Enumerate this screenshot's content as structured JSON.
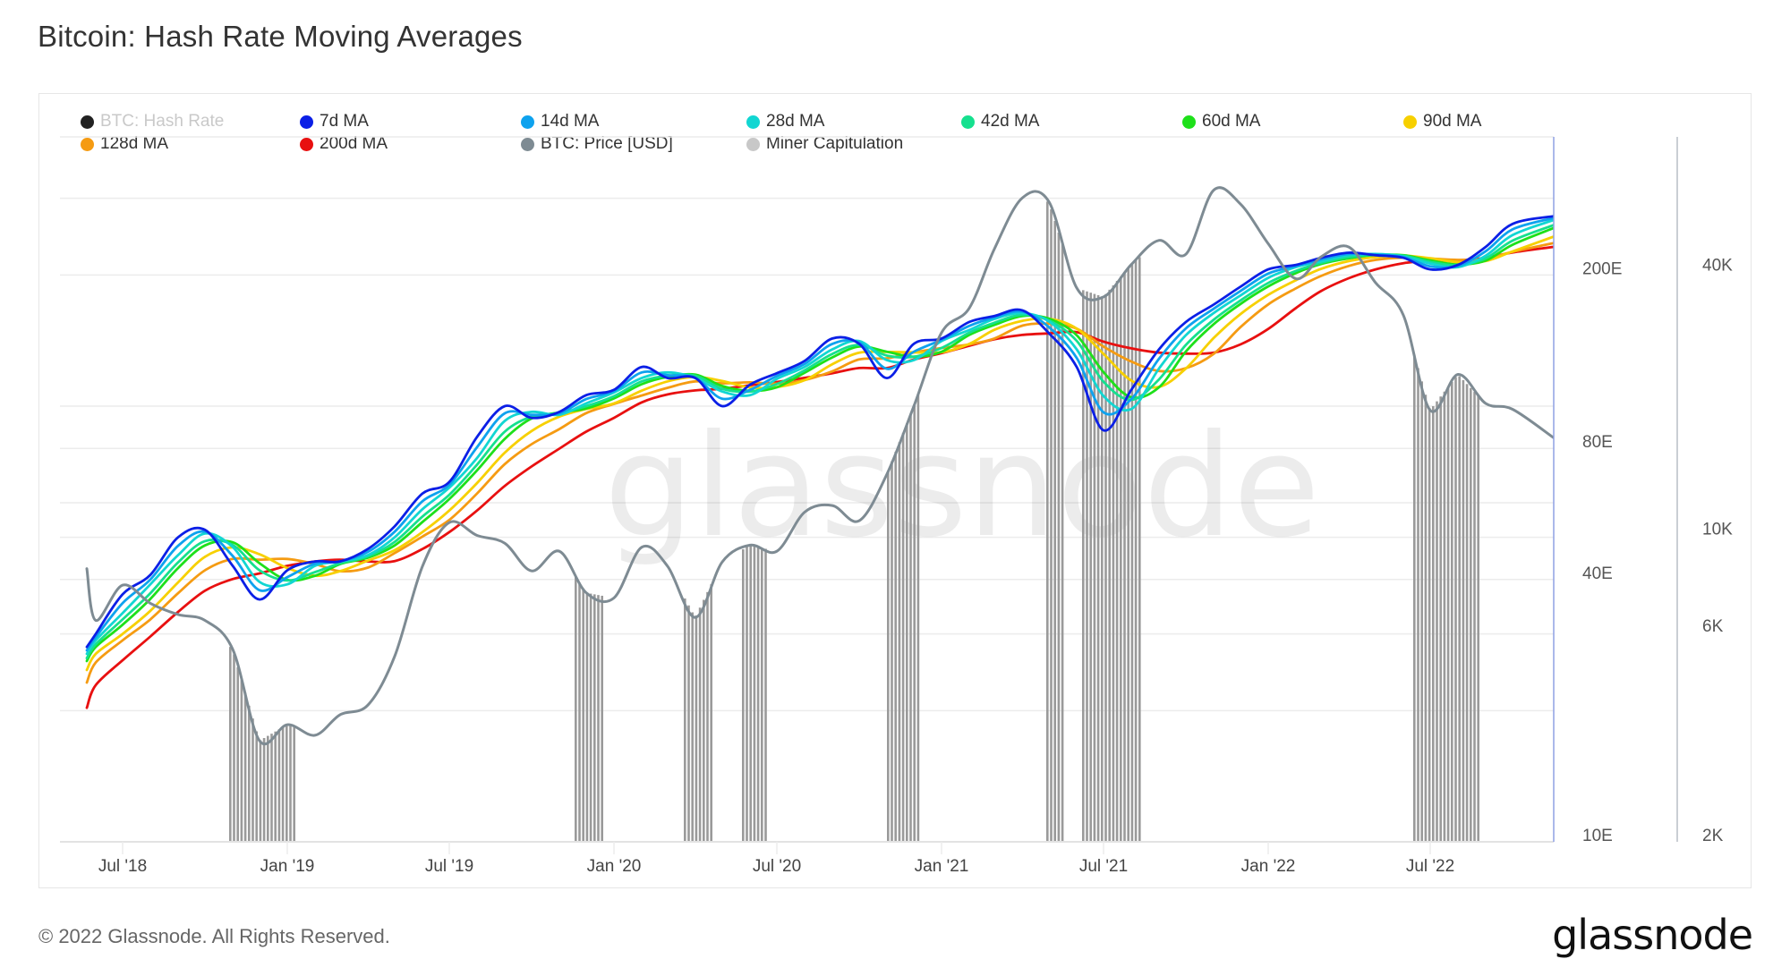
{
  "title": "Bitcoin: Hash Rate Moving Averages",
  "footer": "© 2022 Glassnode. All Rights Reserved.",
  "logo": "glassnode",
  "watermark": "glassnode",
  "legend": [
    {
      "key": "hash",
      "label": "BTC: Hash Rate",
      "color": "#222222",
      "muted": true
    },
    {
      "key": "ma7",
      "label": "7d MA",
      "color": "#0b1fe6"
    },
    {
      "key": "ma14",
      "label": "14d MA",
      "color": "#0ea2ee"
    },
    {
      "key": "ma28",
      "label": "28d MA",
      "color": "#12d6d2"
    },
    {
      "key": "ma42",
      "label": "42d MA",
      "color": "#15e08e"
    },
    {
      "key": "ma60",
      "label": "60d MA",
      "color": "#1ee01a"
    },
    {
      "key": "ma90",
      "label": "90d MA",
      "color": "#f7d000"
    },
    {
      "key": "ma128",
      "label": "128d MA",
      "color": "#f59b12"
    },
    {
      "key": "ma200",
      "label": "200d MA",
      "color": "#e81010"
    },
    {
      "key": "price",
      "label": "BTC: Price [USD]",
      "color": "#7e8b93"
    },
    {
      "key": "capitulation",
      "label": "Miner Capitulation",
      "color": "#c8c8c8"
    }
  ],
  "chart_data": {
    "type": "line",
    "title": "Bitcoin: Hash Rate Moving Averages",
    "xlabel": "",
    "x_tick_labels": [
      {
        "date": "2018-07-01",
        "label": "Jul '18"
      },
      {
        "date": "2019-01-01",
        "label": "Jan '19"
      },
      {
        "date": "2019-07-01",
        "label": "Jul '19"
      },
      {
        "date": "2020-01-01",
        "label": "Jan '20"
      },
      {
        "date": "2020-07-01",
        "label": "Jul '20"
      },
      {
        "date": "2021-01-01",
        "label": "Jan '21"
      },
      {
        "date": "2021-07-01",
        "label": "Jul '21"
      },
      {
        "date": "2022-01-01",
        "label": "Jan '22"
      },
      {
        "date": "2022-07-01",
        "label": "Jul '22"
      }
    ],
    "x_range": [
      "2018-05-22",
      "2022-11-16"
    ],
    "y_axes": [
      {
        "id": "hash",
        "unit": "EH/s",
        "scale": "log",
        "range": [
          10,
          420
        ],
        "tick_labels": [
          {
            "value": 200,
            "label": "200E"
          },
          {
            "value": 80,
            "label": "80E"
          },
          {
            "value": 40,
            "label": "40E"
          },
          {
            "value": 10,
            "label": "10E"
          }
        ],
        "gridlines": [
          300,
          200,
          100,
          80,
          60,
          50,
          40,
          30,
          20
        ]
      },
      {
        "id": "price",
        "unit": "USD",
        "scale": "log",
        "range": [
          2000,
          95000
        ],
        "tick_labels": [
          {
            "value": 40000,
            "label": "40K"
          },
          {
            "value": 10000,
            "label": "10K"
          },
          {
            "value": 6000,
            "label": "6K"
          },
          {
            "value": 2000,
            "label": "2K"
          }
        ]
      }
    ],
    "legend_position": "top",
    "grid": true,
    "x": [
      "2018-05-22",
      "2018-06-01",
      "2018-07-01",
      "2018-08-01",
      "2018-09-01",
      "2018-10-01",
      "2018-11-01",
      "2018-12-01",
      "2019-01-01",
      "2019-02-01",
      "2019-03-01",
      "2019-04-01",
      "2019-05-01",
      "2019-06-01",
      "2019-07-01",
      "2019-08-01",
      "2019-09-01",
      "2019-10-01",
      "2019-11-01",
      "2019-12-01",
      "2020-01-01",
      "2020-02-01",
      "2020-03-01",
      "2020-04-01",
      "2020-05-01",
      "2020-06-01",
      "2020-07-01",
      "2020-08-01",
      "2020-09-01",
      "2020-10-01",
      "2020-11-01",
      "2020-12-01",
      "2021-01-01",
      "2021-02-01",
      "2021-03-01",
      "2021-04-01",
      "2021-05-01",
      "2021-06-01",
      "2021-07-01",
      "2021-08-01",
      "2021-09-01",
      "2021-10-01",
      "2021-11-01",
      "2021-12-01",
      "2022-01-01",
      "2022-02-01",
      "2022-03-01",
      "2022-04-01",
      "2022-05-01",
      "2022-06-01",
      "2022-07-01",
      "2022-08-01",
      "2022-09-01",
      "2022-10-01",
      "2022-11-16"
    ],
    "series": [
      {
        "key": "ma200",
        "name": "200d MA",
        "axis": "hash",
        "values": [
          20.3,
          22.9,
          26.1,
          29.6,
          33.7,
          37.7,
          40.1,
          41.3,
          43,
          44,
          44.4,
          44,
          44.1,
          47,
          51.4,
          57.6,
          65.6,
          72.7,
          79.9,
          87.4,
          94,
          102,
          106.4,
          108.7,
          109.6,
          111.7,
          113.6,
          116.1,
          119,
          122.3,
          122.3,
          127.9,
          132.3,
          137.6,
          142.4,
          145.7,
          146.9,
          147.9,
          140.6,
          135.7,
          132.7,
          132,
          132.7,
          138.6,
          150.4,
          168,
          183.7,
          196.6,
          206,
          212.9,
          215.4,
          216.1,
          219.1,
          225.3,
          232.1
        ]
      },
      {
        "key": "ma128",
        "name": "128d MA",
        "axis": "hash",
        "values": [
          23.2,
          25.8,
          29,
          32.4,
          37.2,
          42,
          44.6,
          44.4,
          44.6,
          43.4,
          41.8,
          42.6,
          46,
          50.2,
          54.8,
          63,
          73.6,
          81.8,
          88.6,
          96.4,
          101.2,
          105.8,
          110.2,
          114,
          112.8,
          113.4,
          112.6,
          114.8,
          120.2,
          128,
          128.8,
          132.8,
          136,
          138.6,
          143,
          153,
          154.6,
          150.6,
          137,
          126.6,
          120.4,
          122.2,
          131.8,
          151.8,
          171.2,
          186.4,
          199,
          209.8,
          216.6,
          219.2,
          218.2,
          216.6,
          218,
          226,
          236.8
        ]
      },
      {
        "key": "ma90",
        "name": "90d MA",
        "axis": "hash",
        "values": [
          24.8,
          27,
          30,
          33.9,
          39.4,
          45.1,
          47.4,
          45.7,
          42.5,
          40.8,
          41.8,
          44.2,
          46.7,
          51.4,
          57.6,
          66.6,
          78.2,
          87.7,
          94.6,
          98.5,
          101.5,
          108.5,
          114,
          116.7,
          114.2,
          110.4,
          110.6,
          114.7,
          124.8,
          132.6,
          133.2,
          132.9,
          132.9,
          139,
          149.7,
          156.9,
          158.7,
          150.7,
          131.8,
          114.5,
          110.7,
          122,
          143.3,
          162.7,
          180.1,
          194.6,
          206.5,
          215.2,
          219.8,
          221.7,
          218.5,
          214.1,
          215.3,
          226.5,
          245
        ]
      },
      {
        "key": "ma60",
        "name": "60d MA",
        "axis": "hash",
        "values": [
          26,
          28,
          31.5,
          36.1,
          42.5,
          47.9,
          48.7,
          43.6,
          39.9,
          40.8,
          43.4,
          44.9,
          47.9,
          54.2,
          61.2,
          71.2,
          84.1,
          93.7,
          96.7,
          98.8,
          104.2,
          112.3,
          116.7,
          118.1,
          111.2,
          108.4,
          110.5,
          119.3,
          129.4,
          137,
          133.3,
          129.8,
          133.3,
          145.7,
          153.6,
          161,
          158.8,
          145.5,
          119.7,
          104.8,
          110.5,
          133.5,
          154.2,
          171.6,
          188.3,
          202.1,
          211.9,
          218.4,
          222.3,
          222,
          216,
          211.4,
          215.8,
          234.7,
          256.3
        ]
      },
      {
        "key": "ma42",
        "name": "42d MA",
        "axis": "hash",
        "values": [
          26.4,
          28.4,
          32.4,
          37.2,
          43.8,
          49,
          48,
          42,
          39.8,
          41.6,
          43.6,
          45.2,
          48.8,
          55.8,
          62.6,
          73.4,
          87.4,
          94.6,
          96.4,
          100,
          105.4,
          114,
          117.4,
          117.4,
          109.6,
          108,
          112.4,
          120.8,
          131.8,
          138.2,
          130.6,
          129.8,
          136,
          147.4,
          155.4,
          162,
          157.4,
          141.2,
          113.8,
          103.4,
          115.2,
          138.2,
          157.8,
          174.8,
          191.8,
          204.4,
          213.2,
          219.8,
          222.6,
          221.4,
          214.4,
          210.6,
          218.4,
          239.8,
          260.4
        ]
      },
      {
        "key": "ma28",
        "name": "28d MA",
        "axis": "hash",
        "values": [
          27,
          29,
          33.5,
          39,
          45.5,
          51,
          47.5,
          39.5,
          39,
          43,
          44,
          45.5,
          50,
          58,
          65,
          76,
          92.5,
          97,
          95.5,
          101.5,
          107.5,
          116,
          119.5,
          116,
          108,
          106,
          115.5,
          123,
          135,
          141,
          127.5,
          127.5,
          141,
          149.5,
          158.5,
          163.5,
          156.5,
          135,
          105.5,
          98.5,
          122,
          145.5,
          163.5,
          179.5,
          197,
          208.5,
          215,
          222,
          223.5,
          220.5,
          212.5,
          208.5,
          221.5,
          247,
          267.5
        ]
      },
      {
        "key": "ma14",
        "name": "14d MA",
        "axis": "hash",
        "values": [
          27.5,
          29.5,
          35.3,
          40,
          47.8,
          51.5,
          45.3,
          37.8,
          40.5,
          43.5,
          44,
          46.3,
          51.5,
          60.5,
          66,
          80.5,
          96.3,
          95.5,
          96.3,
          103.8,
          108.3,
          119.5,
          117.8,
          116,
          104,
          109,
          117.3,
          125,
          139,
          140,
          121.8,
          133.3,
          142,
          152.8,
          159.8,
          164.8,
          151.8,
          129,
          96.8,
          103.8,
          128.5,
          150.8,
          167.3,
          183.8,
          201.5,
          209.8,
          217,
          223.5,
          222.8,
          219.8,
          209.3,
          209.8,
          226.8,
          254.5,
          270.3
        ]
      },
      {
        "key": "ma7",
        "name": "7d MA",
        "axis": "hash",
        "values": [
          28,
          30,
          37,
          41,
          50,
          52,
          43,
          36,
          42,
          44,
          44,
          47,
          53,
          63,
          67,
          85,
          100,
          94,
          97,
          106,
          109,
          123,
          116,
          116,
          100,
          112,
          119,
          127,
          143,
          139,
          116,
          139,
          143,
          156,
          161,
          166,
          147,
          123,
          88,
          109,
          135,
          156,
          171,
          188,
          206,
          211,
          219,
          225,
          222,
          219,
          206,
          211,
          232,
          262,
          273
        ]
      },
      {
        "key": "price",
        "name": "BTC: Price [USD]",
        "axis": "price",
        "values": [
          8400,
          6400,
          7700,
          7000,
          6600,
          6400,
          5500,
          3400,
          3700,
          3500,
          3900,
          4100,
          5300,
          8500,
          10700,
          10000,
          9600,
          8300,
          9200,
          7400,
          7200,
          9400,
          8500,
          6500,
          8700,
          9500,
          9200,
          11300,
          11700,
          10800,
          13800,
          19700,
          29000,
          33000,
          45000,
          58800,
          57700,
          36700,
          35000,
          41500,
          47100,
          43800,
          61300,
          57000,
          46300,
          38500,
          43200,
          45500,
          37700,
          31800,
          19300,
          23300,
          20000,
          19400,
          16700
        ]
      }
    ],
    "miner_capitulation": [
      {
        "start": "2018-10-28",
        "end": "2019-01-09"
      },
      {
        "start": "2019-11-18",
        "end": "2019-12-19"
      },
      {
        "start": "2020-03-19",
        "end": "2020-04-21"
      },
      {
        "start": "2020-05-23",
        "end": "2020-06-21"
      },
      {
        "start": "2020-11-01",
        "end": "2020-12-06"
      },
      {
        "start": "2021-04-28",
        "end": "2021-05-19"
      },
      {
        "start": "2021-06-07",
        "end": "2021-08-10"
      },
      {
        "start": "2022-06-12",
        "end": "2022-08-26"
      }
    ]
  }
}
